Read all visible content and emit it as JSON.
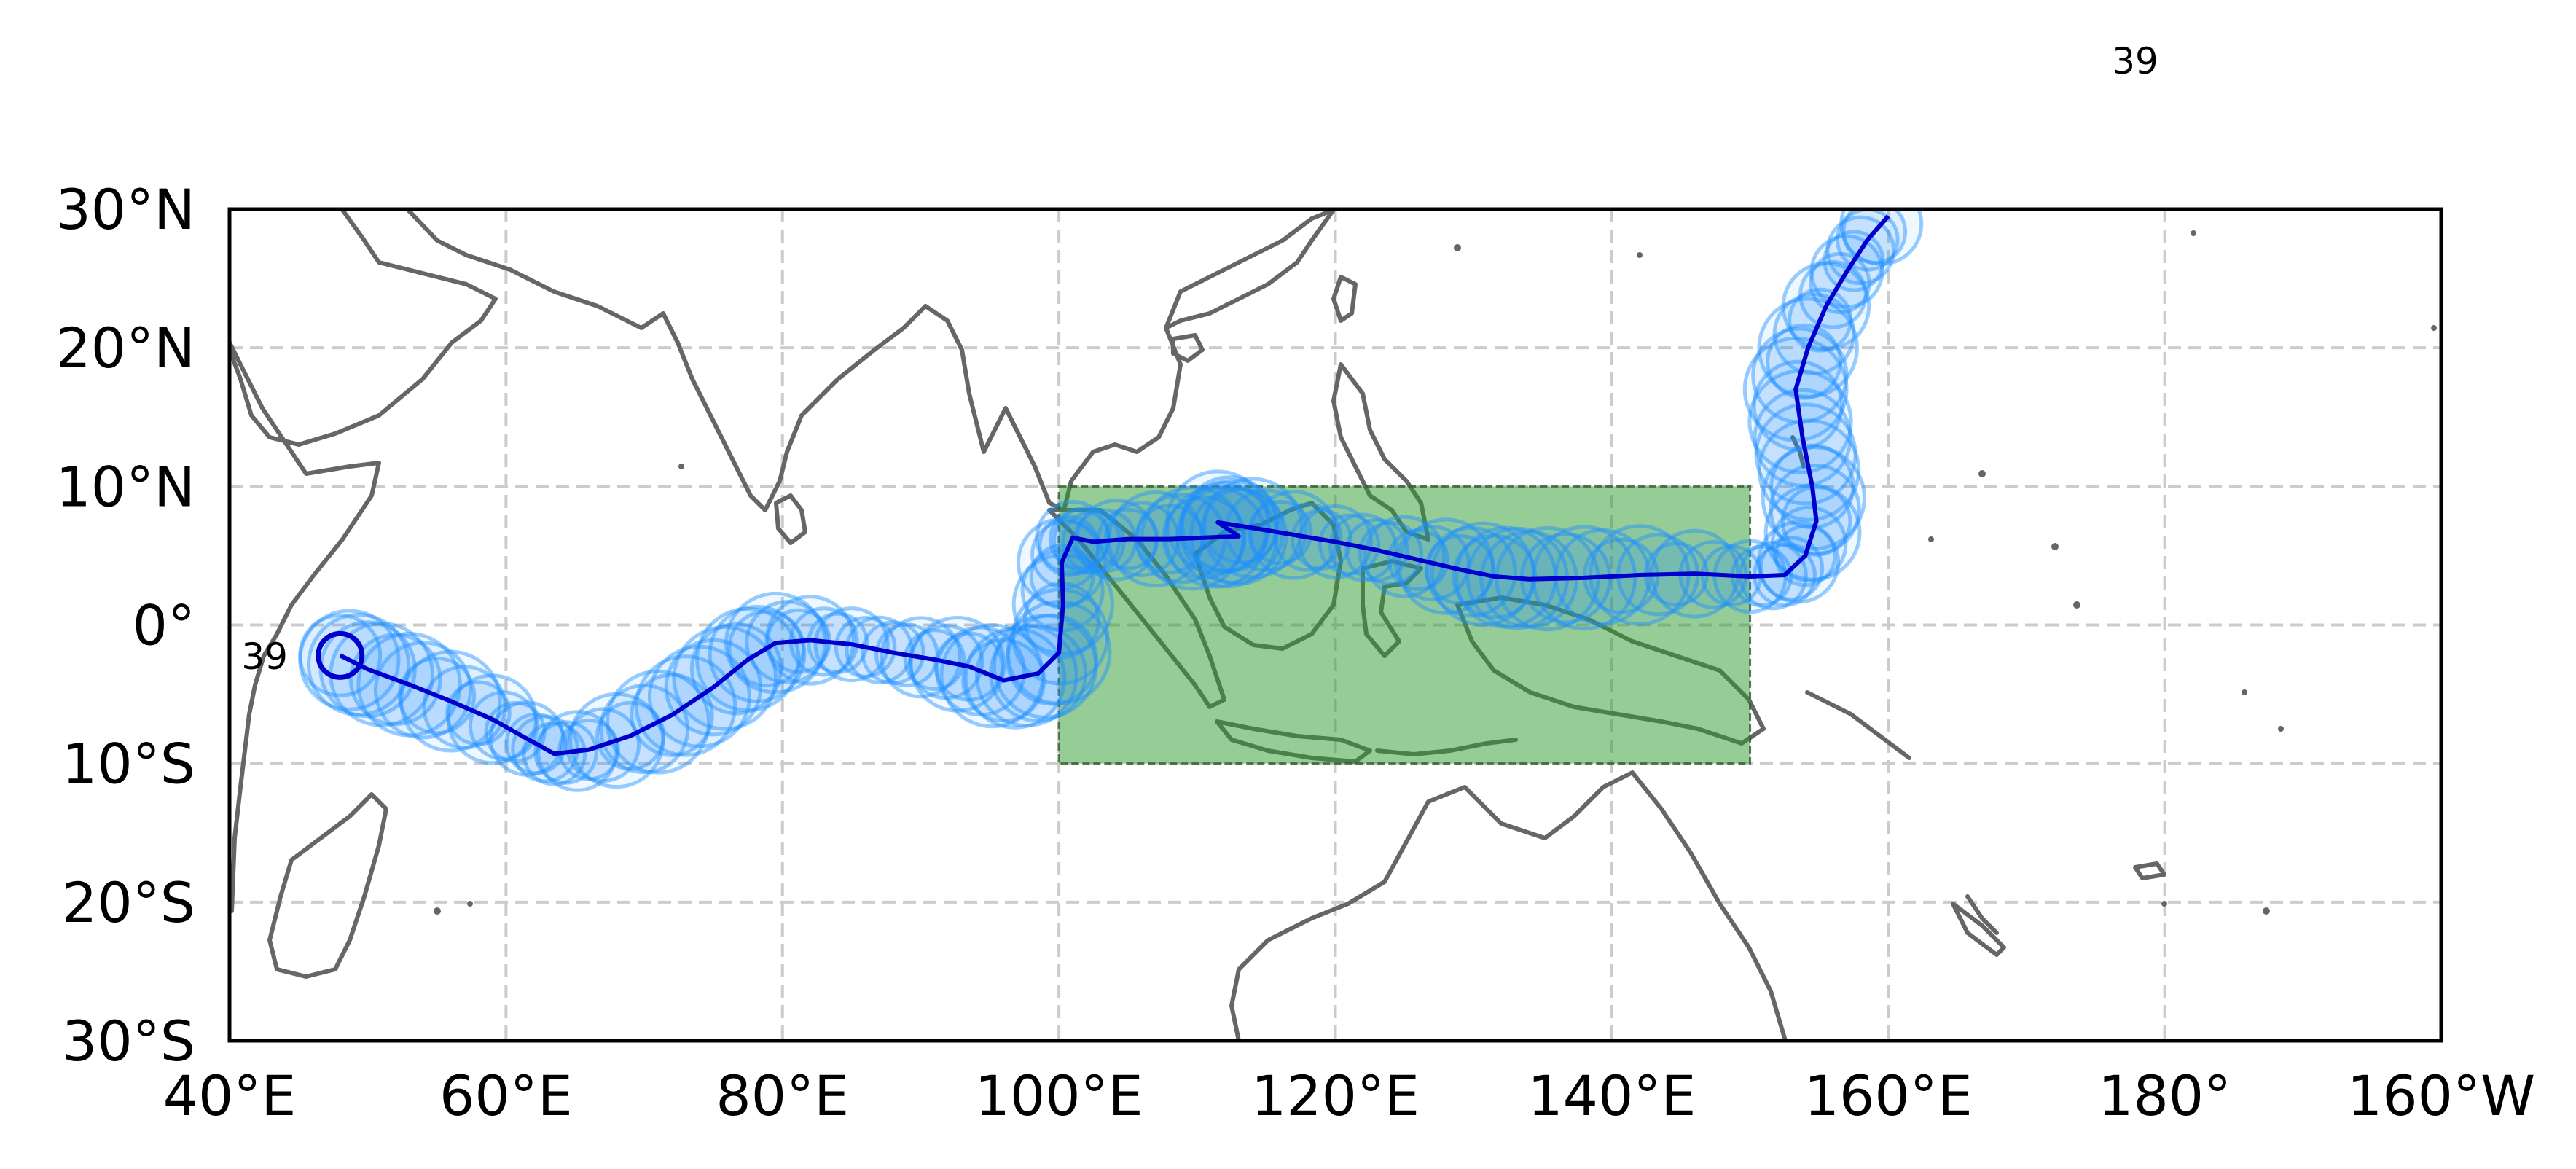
{
  "map": {
    "projection": "PlateCarree",
    "extent": {
      "lon_min": 40,
      "lon_max": 200,
      "lat_min": -30,
      "lat_max": 30
    },
    "gridlines": {
      "lons": [
        60,
        80,
        100,
        120,
        140,
        160,
        180
      ],
      "lats": [
        -20,
        -10,
        0,
        10,
        20
      ],
      "style": "dashed"
    },
    "x_tick_labels": [
      "40°E",
      "60°E",
      "80°E",
      "100°E",
      "120°E",
      "140°E",
      "160°E",
      "180°",
      "160°W"
    ],
    "y_tick_labels": [
      "30°N",
      "20°N",
      "10°N",
      "0°",
      "10°S",
      "20°S",
      "30°S"
    ],
    "top_annotation": "39",
    "start_label": "39",
    "region_box": {
      "lon_min": 100,
      "lon_max": 150,
      "lat_min": -10,
      "lat_max": 10,
      "color": "#2e9a2e"
    },
    "colors": {
      "track_line": "#0000cc",
      "track_circle": "#1e90ff",
      "coast": "#666666",
      "grid": "#cccccc"
    }
  },
  "chart_data": {
    "type": "trajectory-map",
    "track": [
      [
        48.0,
        -2.2
      ],
      [
        50,
        -3.2
      ],
      [
        53,
        -4.3
      ],
      [
        56,
        -5.5
      ],
      [
        59,
        -6.8
      ],
      [
        61.5,
        -8.2
      ],
      [
        63.5,
        -9.3
      ],
      [
        66,
        -9.0
      ],
      [
        69,
        -8.0
      ],
      [
        72,
        -6.5
      ],
      [
        75,
        -4.5
      ],
      [
        77.5,
        -2.5
      ],
      [
        79.5,
        -1.3
      ],
      [
        82,
        -1.1
      ],
      [
        85,
        -1.4
      ],
      [
        88,
        -2.0
      ],
      [
        91,
        -2.5
      ],
      [
        93.5,
        -3.0
      ],
      [
        96,
        -4.0
      ],
      [
        98.5,
        -3.5
      ],
      [
        100,
        -2.0
      ],
      [
        100.3,
        1.5
      ],
      [
        100.2,
        4.5
      ],
      [
        101,
        6.3
      ],
      [
        102.5,
        6.0
      ],
      [
        105,
        6.2
      ],
      [
        108,
        6.2
      ],
      [
        110.5,
        6.3
      ],
      [
        113,
        6.4
      ],
      [
        111.5,
        7.4
      ],
      [
        114,
        7.0
      ],
      [
        117,
        6.5
      ],
      [
        120,
        6.0
      ],
      [
        123,
        5.4
      ],
      [
        126,
        4.7
      ],
      [
        129,
        4.0
      ],
      [
        131.5,
        3.5
      ],
      [
        134,
        3.3
      ],
      [
        138,
        3.4
      ],
      [
        142,
        3.6
      ],
      [
        146,
        3.7
      ],
      [
        150,
        3.5
      ],
      [
        152.5,
        3.6
      ],
      [
        154,
        5.0
      ],
      [
        154.8,
        7.5
      ],
      [
        154.5,
        10.0
      ],
      [
        153.8,
        13.5
      ],
      [
        153.3,
        17.0
      ],
      [
        154.2,
        20.0
      ],
      [
        155.5,
        23.0
      ],
      [
        157,
        25.5
      ],
      [
        158.5,
        27.8
      ],
      [
        160,
        29.5
      ]
    ],
    "start_point": [
      48.0,
      -2.2
    ]
  }
}
